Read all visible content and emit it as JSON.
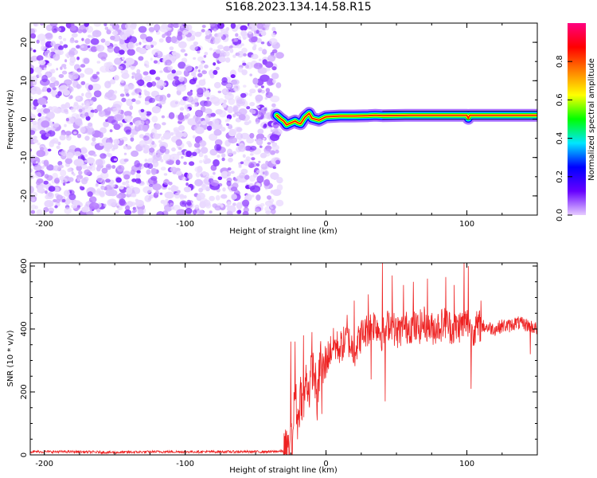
{
  "title": "S168.2023.134.14.58.R15",
  "chart_data": [
    {
      "type": "heatmap",
      "xlabel": "Height of straight line (km)",
      "ylabel": "Frequency (Hz)",
      "xlim": [
        -210,
        150
      ],
      "ylim": [
        -25,
        25
      ],
      "xticks": [
        -200,
        -100,
        0,
        100
      ],
      "yticks": [
        -20,
        -10,
        0,
        10,
        20
      ],
      "noise_region_x": [
        -210,
        -35
      ],
      "signal_line": {
        "x": [
          -35,
          -32,
          -30,
          -28,
          -25,
          -22,
          -20,
          -18,
          -15,
          -12,
          -10,
          -5,
          0,
          5,
          10,
          20,
          30,
          35,
          40,
          60,
          80,
          100,
          101,
          102,
          120,
          150
        ],
        "y": [
          1,
          0,
          -0.5,
          -1.5,
          -1,
          -0.5,
          -1,
          -1.2,
          0.5,
          1.5,
          0.2,
          -0.3,
          0.6,
          0.7,
          0.8,
          0.8,
          0.9,
          1,
          0.9,
          1,
          1,
          1,
          0.2,
          1,
          1,
          1
        ]
      },
      "colorbar": {
        "label": "Normalized spectral amplitude",
        "range": [
          0,
          1
        ],
        "ticks": [
          "0.0",
          "0.2",
          "0.4",
          "0.6",
          "0.8"
        ],
        "tick_values": [
          0,
          0.2,
          0.4,
          0.6,
          0.8
        ],
        "stops": [
          "#e6ccff",
          "#6600ff",
          "#0000ff",
          "#00e6ff",
          "#00ff00",
          "#ffff00",
          "#ff8000",
          "#ff0000",
          "#ff0080"
        ]
      }
    },
    {
      "type": "line",
      "xlabel": "Height of straight line (km)",
      "ylabel": "SNR (10 * v/v)",
      "xlim": [
        -210,
        150
      ],
      "ylim": [
        0,
        610
      ],
      "xticks": [
        -200,
        -100,
        0,
        100
      ],
      "yticks": [
        0,
        200,
        400,
        600
      ],
      "color": "#ee2222",
      "series": [
        {
          "x": [
            -210,
            -190,
            -180,
            -150,
            -120,
            -90,
            -60,
            -40,
            -30,
            -26,
            -24,
            -22,
            -20,
            -18,
            -16,
            -14,
            -12,
            -10,
            -8,
            -6,
            -4,
            -2,
            0,
            5,
            10,
            15,
            20,
            25,
            30,
            35,
            40,
            45,
            50,
            55,
            60,
            65,
            70,
            75,
            80,
            85,
            90,
            95,
            100,
            105,
            110,
            115,
            120,
            125,
            130,
            135,
            140,
            145,
            150
          ],
          "y": [
            10,
            10,
            10,
            8,
            10,
            10,
            10,
            10,
            12,
            20,
            40,
            200,
            100,
            200,
            150,
            250,
            200,
            280,
            250,
            160,
            320,
            260,
            300,
            350,
            340,
            370,
            330,
            380,
            400,
            420,
            380,
            420,
            390,
            400,
            410,
            400,
            420,
            400,
            410,
            420,
            400,
            410,
            420,
            400,
            410,
            405,
            400,
            410,
            410,
            420,
            415,
            410,
            400
          ],
          "spikes": [
            {
              "x": -25,
              "y": 360
            },
            {
              "x": -22,
              "y": 360
            },
            {
              "x": -16,
              "y": 380
            },
            {
              "x": -10,
              "y": 390
            },
            {
              "x": -3,
              "y": 530
            },
            {
              "x": -3,
              "y": 130
            },
            {
              "x": 15,
              "y": 445
            },
            {
              "x": 20,
              "y": 490
            },
            {
              "x": 30,
              "y": 510
            },
            {
              "x": 32,
              "y": 240
            },
            {
              "x": 40,
              "y": 610
            },
            {
              "x": 42,
              "y": 170
            },
            {
              "x": 47,
              "y": 570
            },
            {
              "x": 55,
              "y": 540
            },
            {
              "x": 62,
              "y": 550
            },
            {
              "x": 72,
              "y": 560
            },
            {
              "x": 85,
              "y": 565
            },
            {
              "x": 91,
              "y": 540
            },
            {
              "x": 98,
              "y": 610
            },
            {
              "x": 101,
              "y": 600
            },
            {
              "x": 103,
              "y": 210
            },
            {
              "x": 110,
              "y": 490
            },
            {
              "x": 145,
              "y": 320
            }
          ]
        }
      ]
    }
  ]
}
